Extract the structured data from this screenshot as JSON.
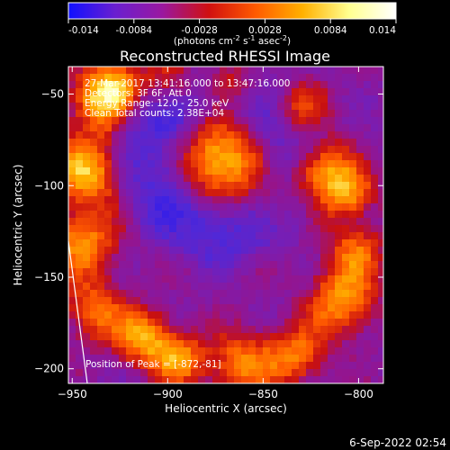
{
  "colorbar": {
    "ticks": [
      "-0.014",
      "-0.0084",
      "-0.0028",
      "0.0028",
      "0.0084",
      "0.014"
    ],
    "units_prefix": "(photons cm",
    "units_exp1": "-2",
    "units_mid1": " s",
    "units_exp2": "-1",
    "units_mid2": " asec",
    "units_exp3": "-2",
    "units_suffix": ")",
    "colors": [
      "#1010ff",
      "#6a1fd0",
      "#9a18a0",
      "#d01010",
      "#ff5a00",
      "#ffb000",
      "#ffff90",
      "#ffffff"
    ]
  },
  "chart_data": {
    "type": "heatmap",
    "title": "Reconstructed RHESSI Image",
    "xlabel": "Heliocentric X (arcsec)",
    "ylabel": "Heliocentric Y (arcsec)",
    "xlim": [
      -952,
      -787
    ],
    "ylim": [
      -208,
      -35
    ],
    "x_ticks": [
      -950,
      -900,
      -850,
      -800
    ],
    "y_ticks": [
      -50,
      -100,
      -150,
      -200
    ],
    "x_tick_labels": [
      "−950",
      "−900",
      "−850",
      "−800"
    ],
    "y_tick_labels": [
      "−50",
      "−100",
      "−150",
      "−200"
    ],
    "zlim": [
      -0.014,
      0.014
    ],
    "peak": {
      "x": -872,
      "y": -81
    },
    "annotations": [
      "27-Mar-2017 13:41:16.000 to 13:47:16.000",
      "Detectors: 3F 6F, Att 0",
      "Energy Range: 12.0 - 25.0 keV",
      "Clean    Total counts: 2.38E+04"
    ],
    "peak_label": "Position of Peak = [-872,-81]"
  },
  "footer": {
    "timestamp": "6-Sep-2022 02:54"
  }
}
